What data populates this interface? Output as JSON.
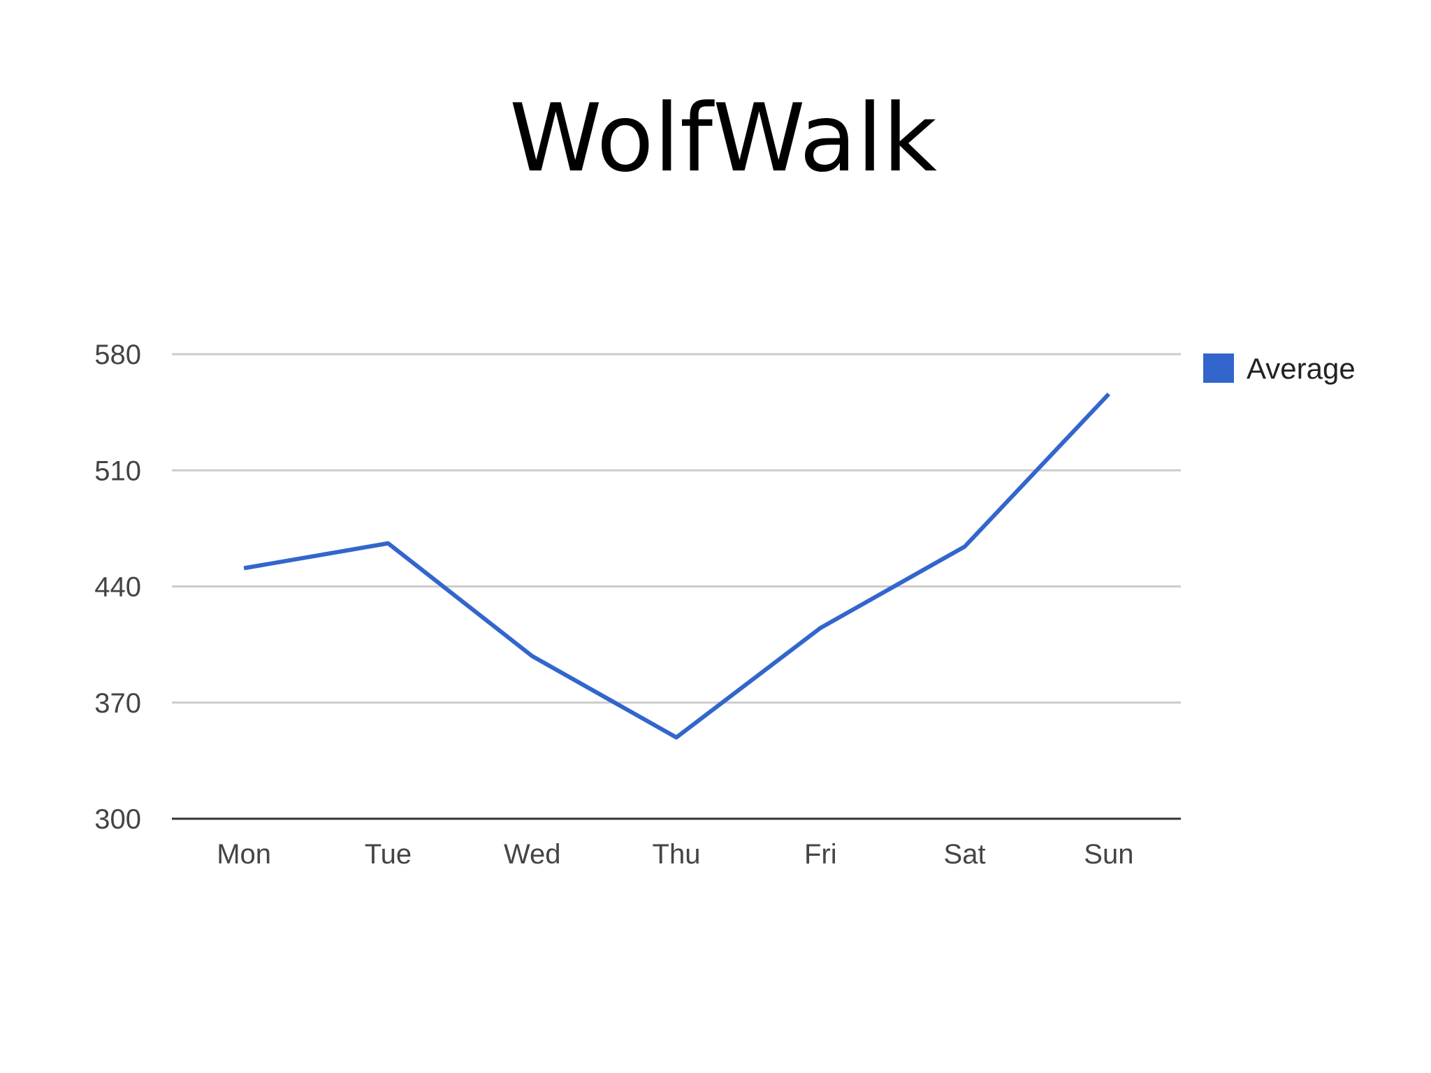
{
  "slide": {
    "title": "WolfWalk"
  },
  "chart_data": {
    "type": "line",
    "title": "WolfWalk",
    "categories": [
      "Mon",
      "Tue",
      "Wed",
      "Thu",
      "Fri",
      "Sat",
      "Sun"
    ],
    "series": [
      {
        "name": "Average",
        "color": "#3366cc",
        "values": [
          451,
          466,
          398,
          349,
          415,
          464,
          556
        ]
      }
    ],
    "ylim": [
      300,
      580
    ],
    "yticks": [
      300,
      370,
      440,
      510,
      580
    ],
    "ytick_labels": [
      "300",
      "370",
      "440",
      "510",
      "580"
    ],
    "grid": true,
    "legend": "right",
    "xlabel": "",
    "ylabel": ""
  }
}
